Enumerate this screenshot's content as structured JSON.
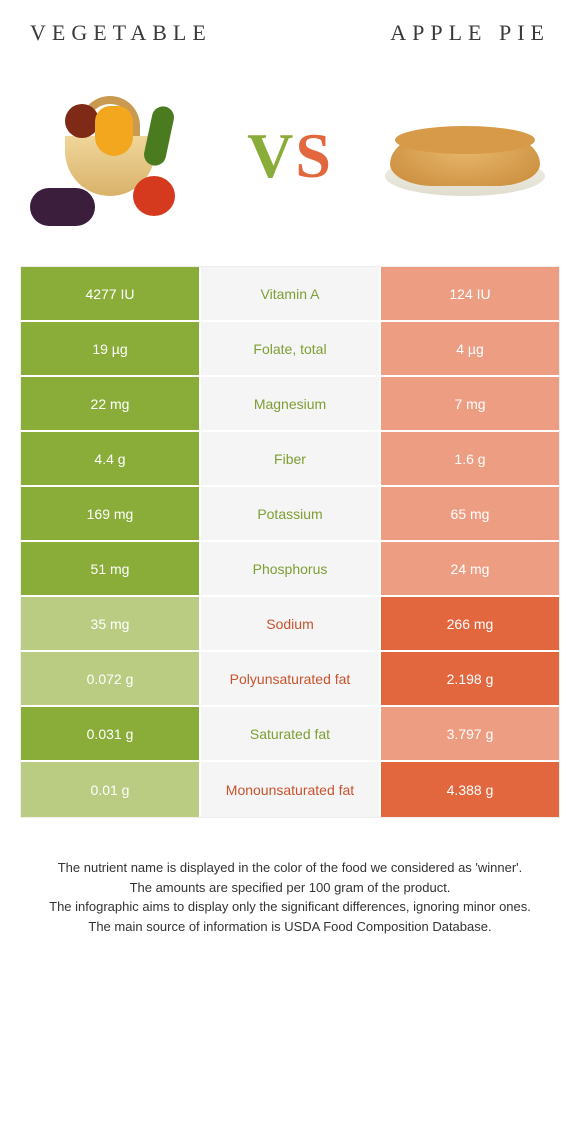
{
  "colors": {
    "left_win": "#8aad3a",
    "left_lose": "#b9cc82",
    "right_win": "#e2663e",
    "right_lose": "#ed9e82",
    "mid_bg": "#f5f5f5",
    "label_left": "#7e9e33",
    "label_right": "#c9532e"
  },
  "header": {
    "left_title": "Vegetable",
    "right_title": "Apple Pie",
    "vs_v": "V",
    "vs_s": "S"
  },
  "rows": [
    {
      "label": "Vitamin A",
      "left": "4277 IU",
      "right": "124 IU",
      "winner": "left"
    },
    {
      "label": "Folate, total",
      "left": "19 µg",
      "right": "4 µg",
      "winner": "left"
    },
    {
      "label": "Magnesium",
      "left": "22 mg",
      "right": "7 mg",
      "winner": "left"
    },
    {
      "label": "Fiber",
      "left": "4.4 g",
      "right": "1.6 g",
      "winner": "left"
    },
    {
      "label": "Potassium",
      "left": "169 mg",
      "right": "65 mg",
      "winner": "left"
    },
    {
      "label": "Phosphorus",
      "left": "51 mg",
      "right": "24 mg",
      "winner": "left"
    },
    {
      "label": "Sodium",
      "left": "35 mg",
      "right": "266 mg",
      "winner": "right"
    },
    {
      "label": "Polyunsaturated fat",
      "left": "0.072 g",
      "right": "2.198 g",
      "winner": "right"
    },
    {
      "label": "Saturated fat",
      "left": "0.031 g",
      "right": "3.797 g",
      "winner": "left"
    },
    {
      "label": "Monounsaturated fat",
      "left": "0.01 g",
      "right": "4.388 g",
      "winner": "right"
    }
  ],
  "footnotes": [
    "The nutrient name is displayed in the color of the food we considered as 'winner'.",
    "The amounts are specified per 100 gram of the product.",
    "The infographic aims to display only the significant differences, ignoring minor ones.",
    "The main source of information is USDA Food Composition Database."
  ]
}
